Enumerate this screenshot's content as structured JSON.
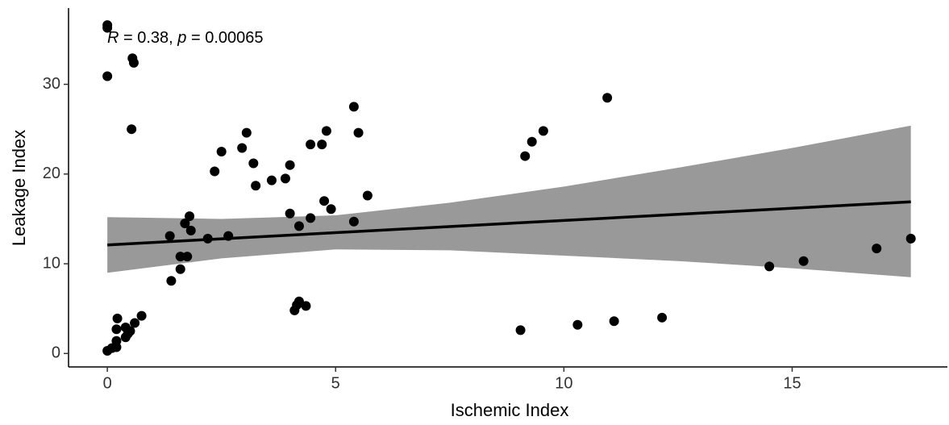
{
  "chart_data": {
    "type": "scatter",
    "x_label": "Ischemic Index",
    "y_label": "Leakage Index",
    "annotation": [
      "R",
      " = 0.38, ",
      "p",
      " = 0.00065"
    ],
    "xlim": [
      -0.85,
      18.4
    ],
    "ylim": [
      -1.5,
      38.5
    ],
    "xticks": [
      0,
      5,
      10,
      15
    ],
    "yticks": [
      0,
      10,
      20,
      30
    ],
    "point_color": "#000000",
    "x": [
      0,
      0,
      0,
      0.55,
      0.58,
      0.53,
      0,
      0.1,
      0.2,
      0.2,
      0.2,
      0.22,
      0.4,
      0.4,
      0.5,
      0.6,
      0.75,
      0.45,
      1.37,
      1.4,
      1.6,
      1.6,
      1.7,
      1.75,
      1.8,
      1.83,
      2.2,
      2.35,
      2.5,
      2.65,
      2.95,
      3.05,
      3.2,
      3.25,
      3.6,
      3.9,
      4.0,
      4.0,
      4.1,
      4.15,
      4.2,
      4.2,
      4.35,
      4.45,
      4.45,
      4.7,
      4.75,
      4.8,
      4.9,
      5.4,
      5.4,
      5.5,
      5.7,
      9.05,
      9.15,
      9.3,
      9.55,
      10.3,
      10.95,
      11.1,
      12.15,
      14.5,
      15.25,
      16.85,
      17.6
    ],
    "values": [
      36.6,
      36.3,
      30.9,
      32.9,
      32.4,
      25.0,
      0.3,
      0.6,
      0.7,
      1.4,
      2.7,
      3.9,
      1.8,
      2.9,
      2.5,
      3.4,
      4.2,
      2.2,
      13.1,
      8.1,
      9.4,
      10.8,
      14.5,
      10.8,
      15.3,
      13.7,
      12.8,
      20.3,
      22.5,
      13.1,
      22.9,
      24.6,
      21.2,
      18.7,
      19.3,
      19.5,
      21.0,
      15.6,
      4.8,
      5.4,
      5.8,
      14.2,
      5.3,
      23.3,
      15.1,
      23.3,
      17.0,
      24.8,
      16.1,
      27.5,
      14.7,
      24.6,
      17.6,
      2.6,
      22.0,
      23.6,
      24.8,
      3.2,
      28.5,
      3.6,
      4.0,
      9.7,
      10.3,
      11.7,
      12.8
    ],
    "fit": {
      "color": "#000000",
      "x": [
        0,
        17.6
      ],
      "values": [
        12.1,
        16.9
      ]
    },
    "band": {
      "color": "#999999",
      "x": [
        0,
        2.5,
        5,
        7.5,
        10,
        12.5,
        15,
        17.6
      ],
      "upper": [
        15.2,
        15.0,
        15.4,
        16.8,
        18.6,
        20.7,
        22.9,
        25.4
      ],
      "lower": [
        9.0,
        10.6,
        11.6,
        11.5,
        10.9,
        10.3,
        9.5,
        8.5
      ]
    }
  }
}
